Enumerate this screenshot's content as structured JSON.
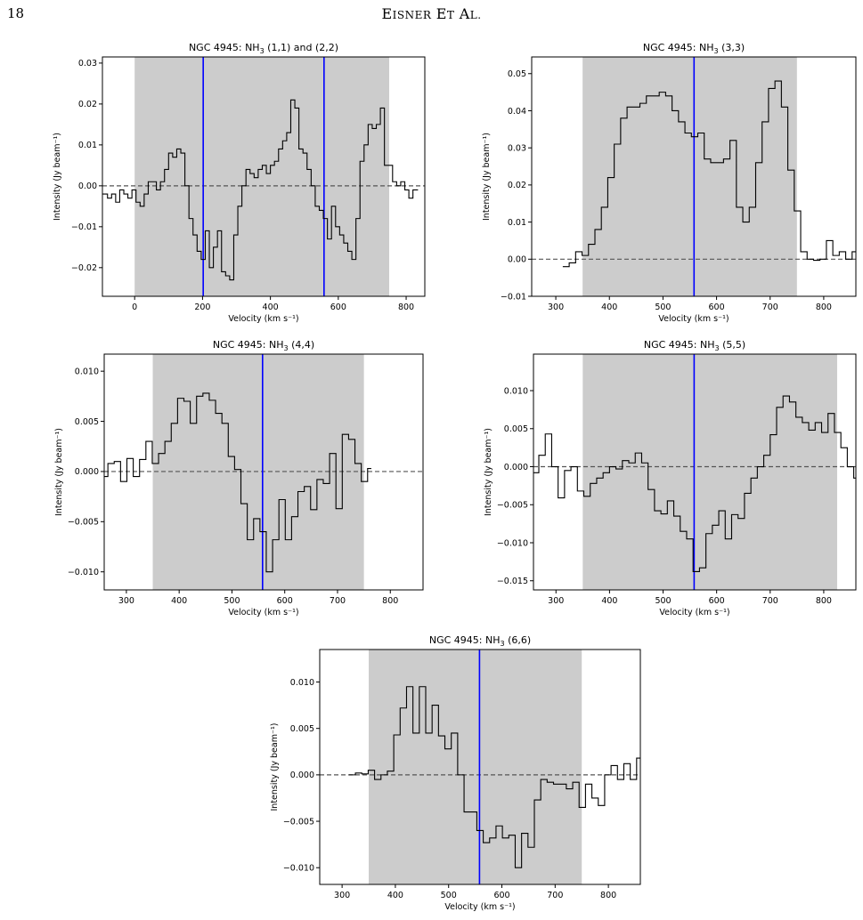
{
  "page": {
    "number": "18",
    "running_head": "EISNER ET AL."
  },
  "colors": {
    "line": "#000000",
    "marker_line": "#0000ff",
    "zero_line": "#555555",
    "shade": "#cccccc"
  },
  "chart_data": [
    {
      "type": "line",
      "step": true,
      "title": "NGC 4945: NH₃ (1,1) and (2,2)",
      "title_parts": {
        "pre": "NGC 4945: NH",
        "sub": "3",
        "post": " (1,1) and (2,2)"
      },
      "xlabel": "Velocity (km s⁻¹)",
      "ylabel": "Intensity (Jy beam⁻¹)",
      "xlim": [
        -95,
        855
      ],
      "ylim": [
        -0.027,
        0.0315
      ],
      "xticks": [
        0,
        200,
        400,
        600,
        800
      ],
      "xtick_labels": [
        "0",
        "200",
        "400",
        "600",
        "800"
      ],
      "yticks": [
        -0.02,
        -0.01,
        0.0,
        0.01,
        0.02,
        0.03
      ],
      "ytick_labels": [
        "−0.02",
        "−0.01",
        "0.00",
        "0.01",
        "0.02",
        "0.03"
      ],
      "shaded_region": [
        0,
        750
      ],
      "vertical_lines": [
        202,
        558
      ],
      "zero_line": true,
      "series": [
        {
          "x": [
            -95,
            -80,
            -68,
            -56,
            -44,
            -32,
            -20,
            -8,
            4,
            16,
            28,
            40,
            52,
            64,
            76,
            88,
            100,
            112,
            124,
            136,
            148,
            160,
            172,
            184,
            196,
            208,
            220,
            232,
            244,
            256,
            268,
            280,
            292,
            304,
            316,
            328,
            340,
            352,
            364,
            376,
            388,
            400,
            412,
            424,
            436,
            448,
            460,
            472,
            484,
            496,
            508,
            520,
            532,
            544,
            556,
            568,
            580,
            592,
            604,
            616,
            628,
            640,
            652,
            664,
            676,
            688,
            700,
            712,
            724,
            736,
            748,
            760,
            772,
            784,
            796,
            808,
            820
          ],
          "y": [
            -0.002,
            -0.003,
            -0.002,
            -0.004,
            -0.001,
            -0.002,
            -0.003,
            -0.001,
            -0.004,
            -0.005,
            -0.002,
            0.001,
            0.001,
            -0.001,
            0.001,
            0.004,
            0.008,
            0.007,
            0.009,
            0.008,
            0.0,
            -0.008,
            -0.012,
            -0.016,
            -0.018,
            -0.011,
            -0.02,
            -0.015,
            -0.011,
            -0.021,
            -0.022,
            -0.023,
            -0.012,
            -0.005,
            0.0,
            0.004,
            0.003,
            0.002,
            0.004,
            0.005,
            0.003,
            0.005,
            0.006,
            0.009,
            0.011,
            0.013,
            0.021,
            0.019,
            0.009,
            0.008,
            0.004,
            0.0,
            -0.005,
            -0.006,
            -0.008,
            -0.013,
            -0.005,
            -0.01,
            -0.012,
            -0.014,
            -0.016,
            -0.018,
            -0.008,
            0.006,
            0.01,
            0.015,
            0.014,
            0.015,
            0.019,
            0.005,
            0.005,
            0.001,
            0.0,
            0.001,
            -0.001,
            -0.003,
            -0.001
          ]
        }
      ]
    },
    {
      "type": "line",
      "step": true,
      "title": "NGC 4945: NH₃ (3,3)",
      "title_parts": {
        "pre": "NGC 4945: NH",
        "sub": "3",
        "post": " (3,3)"
      },
      "xlabel": "Velocity (km s⁻¹)",
      "ylabel": "Intensity (Jy beam⁻¹)",
      "xlim": [
        255,
        860
      ],
      "ylim": [
        -0.01,
        0.0545
      ],
      "xticks": [
        300,
        400,
        500,
        600,
        700,
        800
      ],
      "xtick_labels": [
        "300",
        "400",
        "500",
        "600",
        "700",
        "800"
      ],
      "yticks": [
        -0.01,
        0.0,
        0.01,
        0.02,
        0.03,
        0.04,
        0.05
      ],
      "ytick_labels": [
        "−0.01",
        "0.00",
        "0.01",
        "0.02",
        "0.03",
        "0.04",
        "0.05"
      ],
      "shaded_region": [
        350,
        750
      ],
      "vertical_lines": [
        558
      ],
      "zero_line": true,
      "series": [
        {
          "x": [
            313,
            325,
            337,
            349,
            361,
            373,
            385,
            397,
            409,
            421,
            433,
            445,
            457,
            469,
            481,
            493,
            505,
            517,
            529,
            541,
            553,
            565,
            577,
            589,
            601,
            613,
            625,
            637,
            649,
            661,
            673,
            685,
            697,
            709,
            721,
            733,
            745,
            757,
            769,
            781,
            793,
            805,
            817,
            829,
            841,
            853,
            865
          ],
          "y": [
            -0.002,
            -0.001,
            0.002,
            0.001,
            0.004,
            0.008,
            0.014,
            0.022,
            0.031,
            0.038,
            0.041,
            0.041,
            0.042,
            0.044,
            0.044,
            0.045,
            0.044,
            0.04,
            0.037,
            0.034,
            0.033,
            0.034,
            0.027,
            0.026,
            0.026,
            0.027,
            0.032,
            0.014,
            0.01,
            0.014,
            0.026,
            0.037,
            0.046,
            0.048,
            0.041,
            0.024,
            0.013,
            0.002,
            0.0,
            -0.0003,
            0.0,
            0.005,
            0.001,
            0.002,
            0.0,
            0.002,
            0.001
          ]
        }
      ]
    },
    {
      "type": "line",
      "step": true,
      "title": "NGC 4945: NH₃ (4,4)",
      "title_parts": {
        "pre": "NGC 4945: NH",
        "sub": "3",
        "post": " (4,4)"
      },
      "xlabel": "Velocity (km s⁻¹)",
      "ylabel": "Intensity (Jy beam⁻¹)",
      "xlim": [
        258,
        862
      ],
      "ylim": [
        -0.0118,
        0.0117
      ],
      "xticks": [
        300,
        400,
        500,
        600,
        700,
        800
      ],
      "xtick_labels": [
        "300",
        "400",
        "500",
        "600",
        "700",
        "800"
      ],
      "yticks": [
        -0.01,
        -0.005,
        0.0,
        0.005,
        0.01
      ],
      "ytick_labels": [
        "−0.010",
        "−0.005",
        "0.000",
        "0.005",
        "0.010"
      ],
      "shaded_region": [
        350,
        750
      ],
      "vertical_lines": [
        558
      ],
      "zero_line": true,
      "series": [
        {
          "x": [
            258,
            265,
            277,
            289,
            301,
            313,
            325,
            337,
            349,
            361,
            373,
            385,
            397,
            409,
            421,
            433,
            445,
            457,
            469,
            481,
            493,
            505,
            517,
            529,
            541,
            553,
            565,
            577,
            589,
            601,
            613,
            625,
            637,
            649,
            661,
            673,
            685,
            697,
            709,
            721,
            733,
            745,
            757
          ],
          "y": [
            -0.0005,
            0.0008,
            0.001,
            -0.001,
            0.0013,
            -0.0005,
            0.0012,
            0.003,
            0.0008,
            0.0018,
            0.003,
            0.0048,
            0.0073,
            0.007,
            0.0048,
            0.0075,
            0.0078,
            0.0071,
            0.0058,
            0.0048,
            0.0015,
            0.0002,
            -0.0032,
            -0.0068,
            -0.0047,
            -0.006,
            -0.01,
            -0.0068,
            -0.0028,
            -0.0068,
            -0.0045,
            -0.002,
            -0.0015,
            -0.0038,
            -0.0008,
            -0.0012,
            0.0018,
            -0.0037,
            0.0037,
            0.0032,
            0.0008,
            -0.001,
            0.0003
          ]
        }
      ]
    },
    {
      "type": "line",
      "step": true,
      "title": "NGC 4945: NH₃ (5,5)",
      "title_parts": {
        "pre": "NGC 4945: NH",
        "sub": "3",
        "post": " (5,5)"
      },
      "xlabel": "Velocity (km s⁻¹)",
      "ylabel": "Intensity (Jy beam⁻¹)",
      "xlim": [
        258,
        860
      ],
      "ylim": [
        -0.0162,
        0.0148
      ],
      "xticks": [
        300,
        400,
        500,
        600,
        700,
        800
      ],
      "xtick_labels": [
        "300",
        "400",
        "500",
        "600",
        "700",
        "800"
      ],
      "yticks": [
        -0.015,
        -0.01,
        -0.005,
        0.0,
        0.005,
        0.01
      ],
      "ytick_labels": [
        "−0.015",
        "−0.010",
        "−0.005",
        "0.000",
        "0.005",
        "0.010"
      ],
      "shaded_region": [
        350,
        825
      ],
      "vertical_lines": [
        558
      ],
      "zero_line": true,
      "series": [
        {
          "x": [
            258,
            268,
            280,
            292,
            304,
            316,
            328,
            340,
            352,
            364,
            376,
            388,
            400,
            412,
            424,
            436,
            448,
            460,
            472,
            484,
            496,
            508,
            520,
            532,
            544,
            556,
            568,
            580,
            592,
            604,
            616,
            628,
            640,
            652,
            664,
            676,
            688,
            700,
            712,
            724,
            736,
            748,
            760,
            772,
            784,
            796,
            808,
            820,
            832,
            844,
            856,
            868
          ],
          "y": [
            -0.0008,
            0.0015,
            0.0043,
            0.0,
            -0.0041,
            -0.0005,
            0.0,
            -0.0032,
            -0.0039,
            -0.0022,
            -0.0015,
            -0.0008,
            0.0,
            -0.0003,
            0.0008,
            0.0005,
            0.0018,
            0.0005,
            -0.003,
            -0.0058,
            -0.0062,
            -0.0045,
            -0.0065,
            -0.0085,
            -0.0095,
            -0.0138,
            -0.0133,
            -0.0088,
            -0.0077,
            -0.0058,
            -0.0095,
            -0.0063,
            -0.0068,
            -0.0035,
            -0.0015,
            0.0,
            0.0015,
            0.0042,
            0.0078,
            0.0093,
            0.0085,
            0.0065,
            0.0058,
            0.0048,
            0.0058,
            0.0045,
            0.007,
            0.0045,
            0.0025,
            0.0,
            -0.0015,
            0.0
          ]
        }
      ]
    },
    {
      "type": "line",
      "step": true,
      "title": "NGC 4945: NH₃ (6,6)",
      "title_parts": {
        "pre": "NGC 4945: NH",
        "sub": "3",
        "post": " (6,6)"
      },
      "xlabel": "Velocity (km s⁻¹)",
      "ylabel": "Intensity (Jy beam⁻¹)",
      "xlim": [
        258,
        860
      ],
      "ylim": [
        -0.0118,
        0.0135
      ],
      "xticks": [
        300,
        400,
        500,
        600,
        700,
        800
      ],
      "xtick_labels": [
        "300",
        "400",
        "500",
        "600",
        "700",
        "800"
      ],
      "yticks": [
        -0.01,
        -0.005,
        0.0,
        0.005,
        0.01
      ],
      "ytick_labels": [
        "−0.010",
        "−0.005",
        "0.000",
        "0.005",
        "0.010"
      ],
      "shaded_region": [
        350,
        750
      ],
      "vertical_lines": [
        558
      ],
      "zero_line": true,
      "series": [
        {
          "x": [
            313,
            325,
            337,
            349,
            361,
            373,
            385,
            397,
            409,
            421,
            433,
            445,
            457,
            469,
            481,
            493,
            505,
            517,
            529,
            541,
            553,
            565,
            577,
            589,
            601,
            613,
            625,
            637,
            649,
            661,
            673,
            685,
            697,
            709,
            721,
            733,
            745,
            757,
            769,
            781,
            793,
            805,
            817,
            829,
            841,
            853,
            865
          ],
          "y": [
            0.0,
            0.0002,
            0.0001,
            0.0005,
            -0.0005,
            0.0,
            0.0004,
            0.0043,
            0.0072,
            0.0095,
            0.0045,
            0.0095,
            0.0045,
            0.0075,
            0.0042,
            0.0028,
            0.0045,
            0.0,
            -0.004,
            -0.004,
            -0.006,
            -0.0073,
            -0.0068,
            -0.0055,
            -0.0068,
            -0.0065,
            -0.01,
            -0.0063,
            -0.0078,
            -0.0027,
            -0.0005,
            -0.0008,
            -0.001,
            -0.001,
            -0.0015,
            -0.0008,
            -0.0035,
            -0.001,
            -0.0025,
            -0.0033,
            0.0,
            0.001,
            -0.0005,
            0.0012,
            -0.0005,
            0.0018,
            0.0
          ]
        }
      ]
    }
  ]
}
